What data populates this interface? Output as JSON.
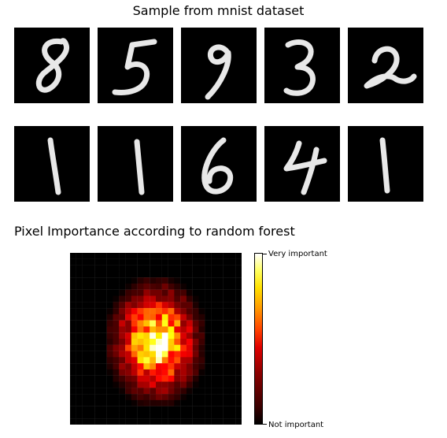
{
  "figure": {
    "title": "Sample from mnist dataset",
    "section_title": "Pixel Importance according to random forest"
  },
  "digits": [
    "8",
    "5",
    "9",
    "3",
    "2",
    "1",
    "1",
    "6",
    "4",
    "1"
  ],
  "chart_data": {
    "type": "heatmap",
    "title": "Pixel Importance according to random forest",
    "colormap": "hot",
    "colorbar": {
      "low_label": "Not important",
      "high_label": "Very important"
    },
    "grid_size": 28,
    "description_of_values": "relative importance 0..1 per pixel of 28x28 image"
  }
}
